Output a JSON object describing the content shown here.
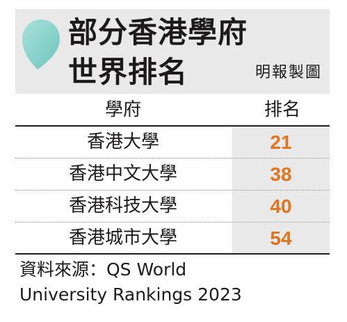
{
  "header": {
    "title_line1": "部分香港學府",
    "title_line2": "世界排名",
    "credit": "明報製圖"
  },
  "table": {
    "columns": [
      "學府",
      "排名"
    ],
    "rows": [
      {
        "university": "香港大學",
        "rank": "21"
      },
      {
        "university": "香港中文大學",
        "rank": "38"
      },
      {
        "university": "香港科技大學",
        "rank": "40"
      },
      {
        "university": "香港城市大學",
        "rank": "54"
      }
    ]
  },
  "source": {
    "line1": "資料來源：QS World",
    "line2": "University Rankings 2023"
  },
  "colors": {
    "accent_orange": "#e0751e",
    "header_band": "#e9e9e9",
    "drop_teal": "#7fd0c8"
  },
  "icons": {
    "header_icon": "teardrop-icon"
  }
}
